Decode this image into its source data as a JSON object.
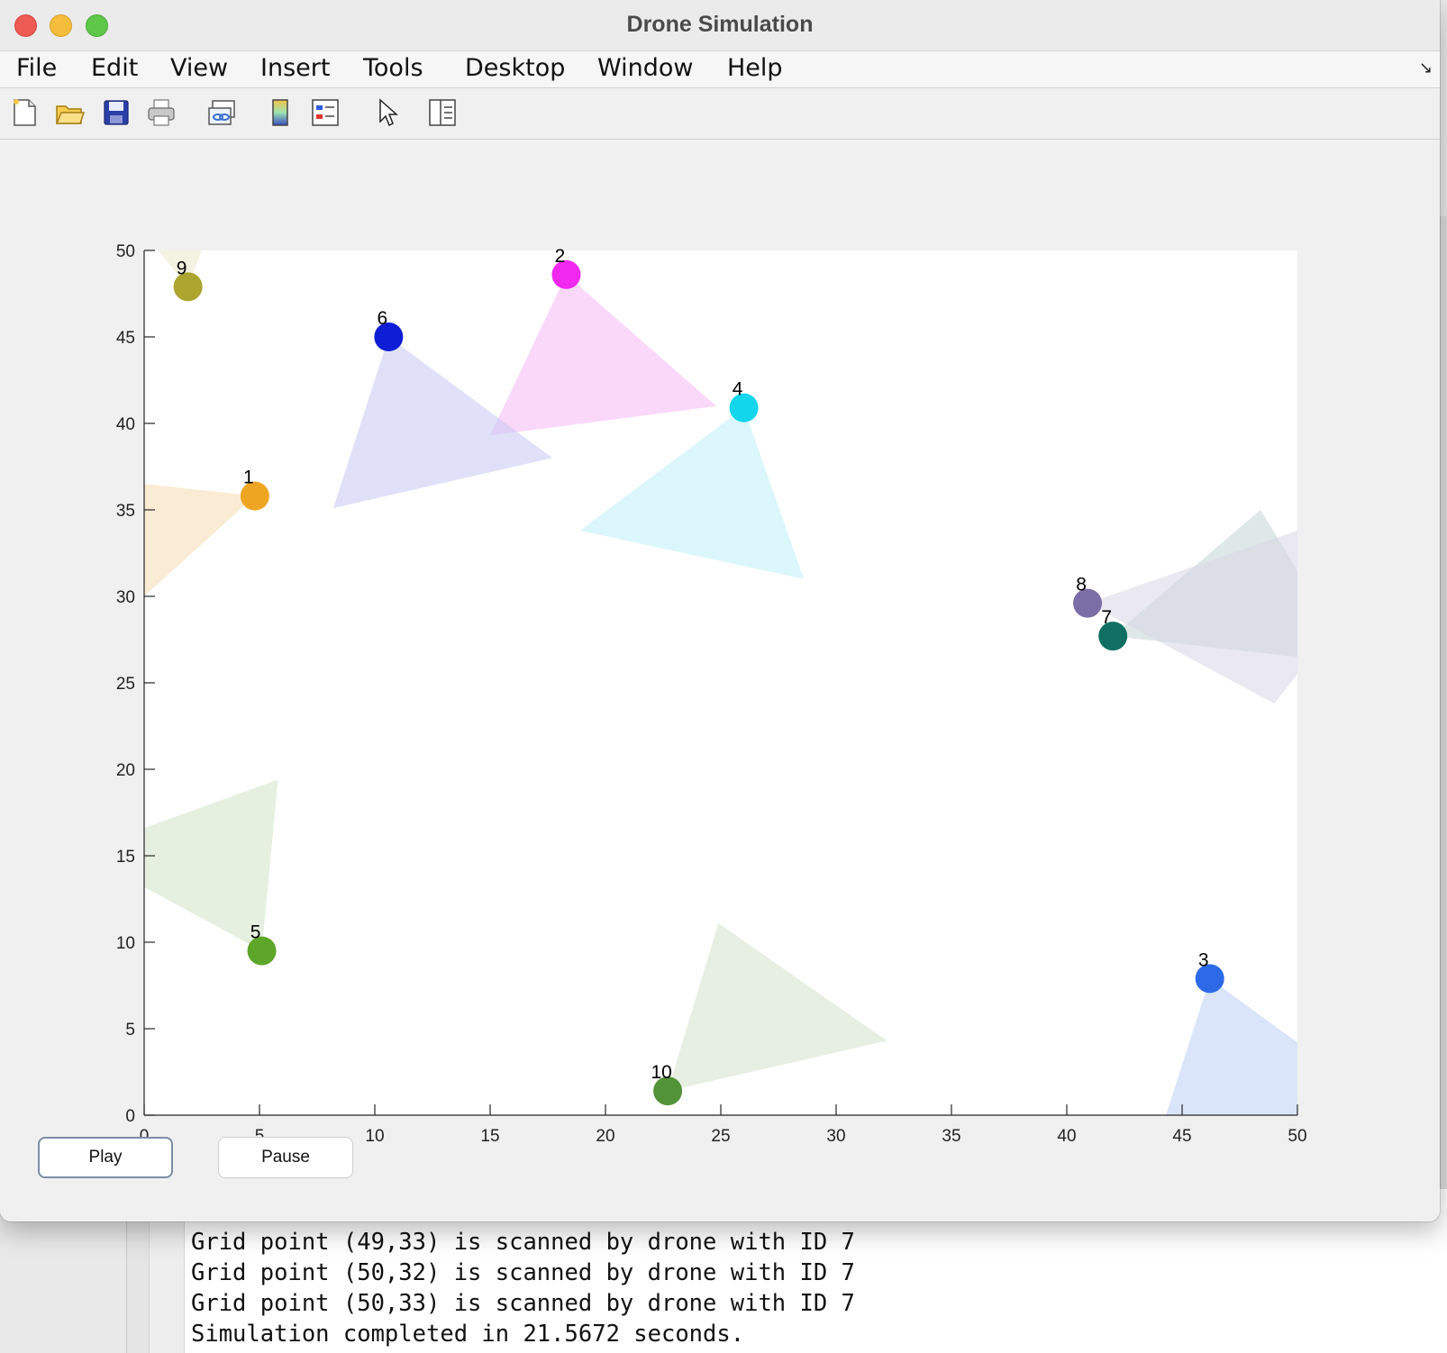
{
  "window": {
    "title": "Drone Simulation"
  },
  "menubar": {
    "items": [
      "File",
      "Edit",
      "View",
      "Insert",
      "Tools",
      "Desktop",
      "Window",
      "Help"
    ]
  },
  "toolbar": {
    "buttons": [
      "new-figure-icon",
      "open-file-icon",
      "save-icon",
      "print-icon",
      "link-plot-icon",
      "insert-colorbar-icon",
      "insert-legend-icon",
      "edit-plot-pointer-icon",
      "property-inspector-icon"
    ]
  },
  "controls": {
    "play_label": "Play",
    "pause_label": "Pause"
  },
  "console": {
    "lines": [
      "Grid point (49,33) is scanned by drone with ID 7",
      "Grid point (50,32) is scanned by drone with ID 7",
      "Grid point (50,33) is scanned by drone with ID 7",
      "Simulation completed in 21.5672 seconds."
    ]
  },
  "chart_data": {
    "type": "scatter",
    "xlim": [
      0,
      50
    ],
    "ylim": [
      0,
      50
    ],
    "xticks": [
      0,
      5,
      10,
      15,
      20,
      25,
      30,
      35,
      40,
      45,
      50
    ],
    "yticks": [
      0,
      5,
      10,
      15,
      20,
      25,
      30,
      35,
      40,
      45,
      50
    ],
    "grid": false,
    "drones": [
      {
        "id": "1",
        "x": 4.8,
        "y": 35.8,
        "color": "#eda522",
        "cone": [
          [
            4.8,
            35.8
          ],
          [
            0,
            36.5
          ],
          [
            0,
            30.0
          ]
        ],
        "cone_color": "#f5dcb0"
      },
      {
        "id": "2",
        "x": 18.3,
        "y": 48.6,
        "color": "#f028f0",
        "cone": [
          [
            18.3,
            48.6
          ],
          [
            15.0,
            39.3
          ],
          [
            24.8,
            41.0
          ]
        ],
        "cone_color": "#f6b8f6"
      },
      {
        "id": "3",
        "x": 46.2,
        "y": 7.9,
        "color": "#2d6ae8",
        "cone": [
          [
            46.2,
            7.9
          ],
          [
            50,
            4.2
          ],
          [
            50,
            0
          ],
          [
            44.3,
            0
          ]
        ],
        "cone_color": "#bcd0f5"
      },
      {
        "id": "4",
        "x": 26.0,
        "y": 40.9,
        "color": "#12d6ec",
        "cone": [
          [
            26.0,
            40.9
          ],
          [
            18.9,
            33.8
          ],
          [
            28.6,
            31.0
          ]
        ],
        "cone_color": "#bdf1f8"
      },
      {
        "id": "5",
        "x": 5.1,
        "y": 9.5,
        "color": "#5ea629",
        "cone": [
          [
            5.1,
            9.5
          ],
          [
            0,
            13.2
          ],
          [
            0,
            16.6
          ],
          [
            5.8,
            19.4
          ]
        ],
        "cone_color": "#d2e3c6"
      },
      {
        "id": "6",
        "x": 10.6,
        "y": 45.0,
        "color": "#0e1ed4",
        "cone": [
          [
            10.6,
            45.0
          ],
          [
            8.2,
            35.1
          ],
          [
            17.7,
            38.0
          ]
        ],
        "cone_color": "#c6c8f2"
      },
      {
        "id": "7",
        "x": 42.0,
        "y": 27.7,
        "color": "#0e6f62",
        "cone": [
          [
            42.0,
            27.7
          ],
          [
            48.4,
            35.0
          ],
          [
            50,
            31.5
          ],
          [
            50,
            26.5
          ]
        ],
        "cone_color": "#c3d6d3"
      },
      {
        "id": "8",
        "x": 40.9,
        "y": 29.6,
        "color": "#7b6da5",
        "cone": [
          [
            40.9,
            29.6
          ],
          [
            50,
            33.8
          ],
          [
            50,
            25.5
          ],
          [
            49.0,
            23.8
          ]
        ],
        "cone_color": "#d8d6e6"
      },
      {
        "id": "9",
        "x": 1.9,
        "y": 47.9,
        "color": "#aba42e",
        "cone": [
          [
            1.9,
            47.9
          ],
          [
            0.6,
            50
          ],
          [
            2.5,
            50
          ]
        ],
        "cone_color": "#ebe9c8"
      },
      {
        "id": "10",
        "x": 22.7,
        "y": 1.4,
        "color": "#539338",
        "cone": [
          [
            22.7,
            1.4
          ],
          [
            24.9,
            11.1
          ],
          [
            32.2,
            4.3
          ]
        ],
        "cone_color": "#d4e2cb"
      }
    ]
  }
}
